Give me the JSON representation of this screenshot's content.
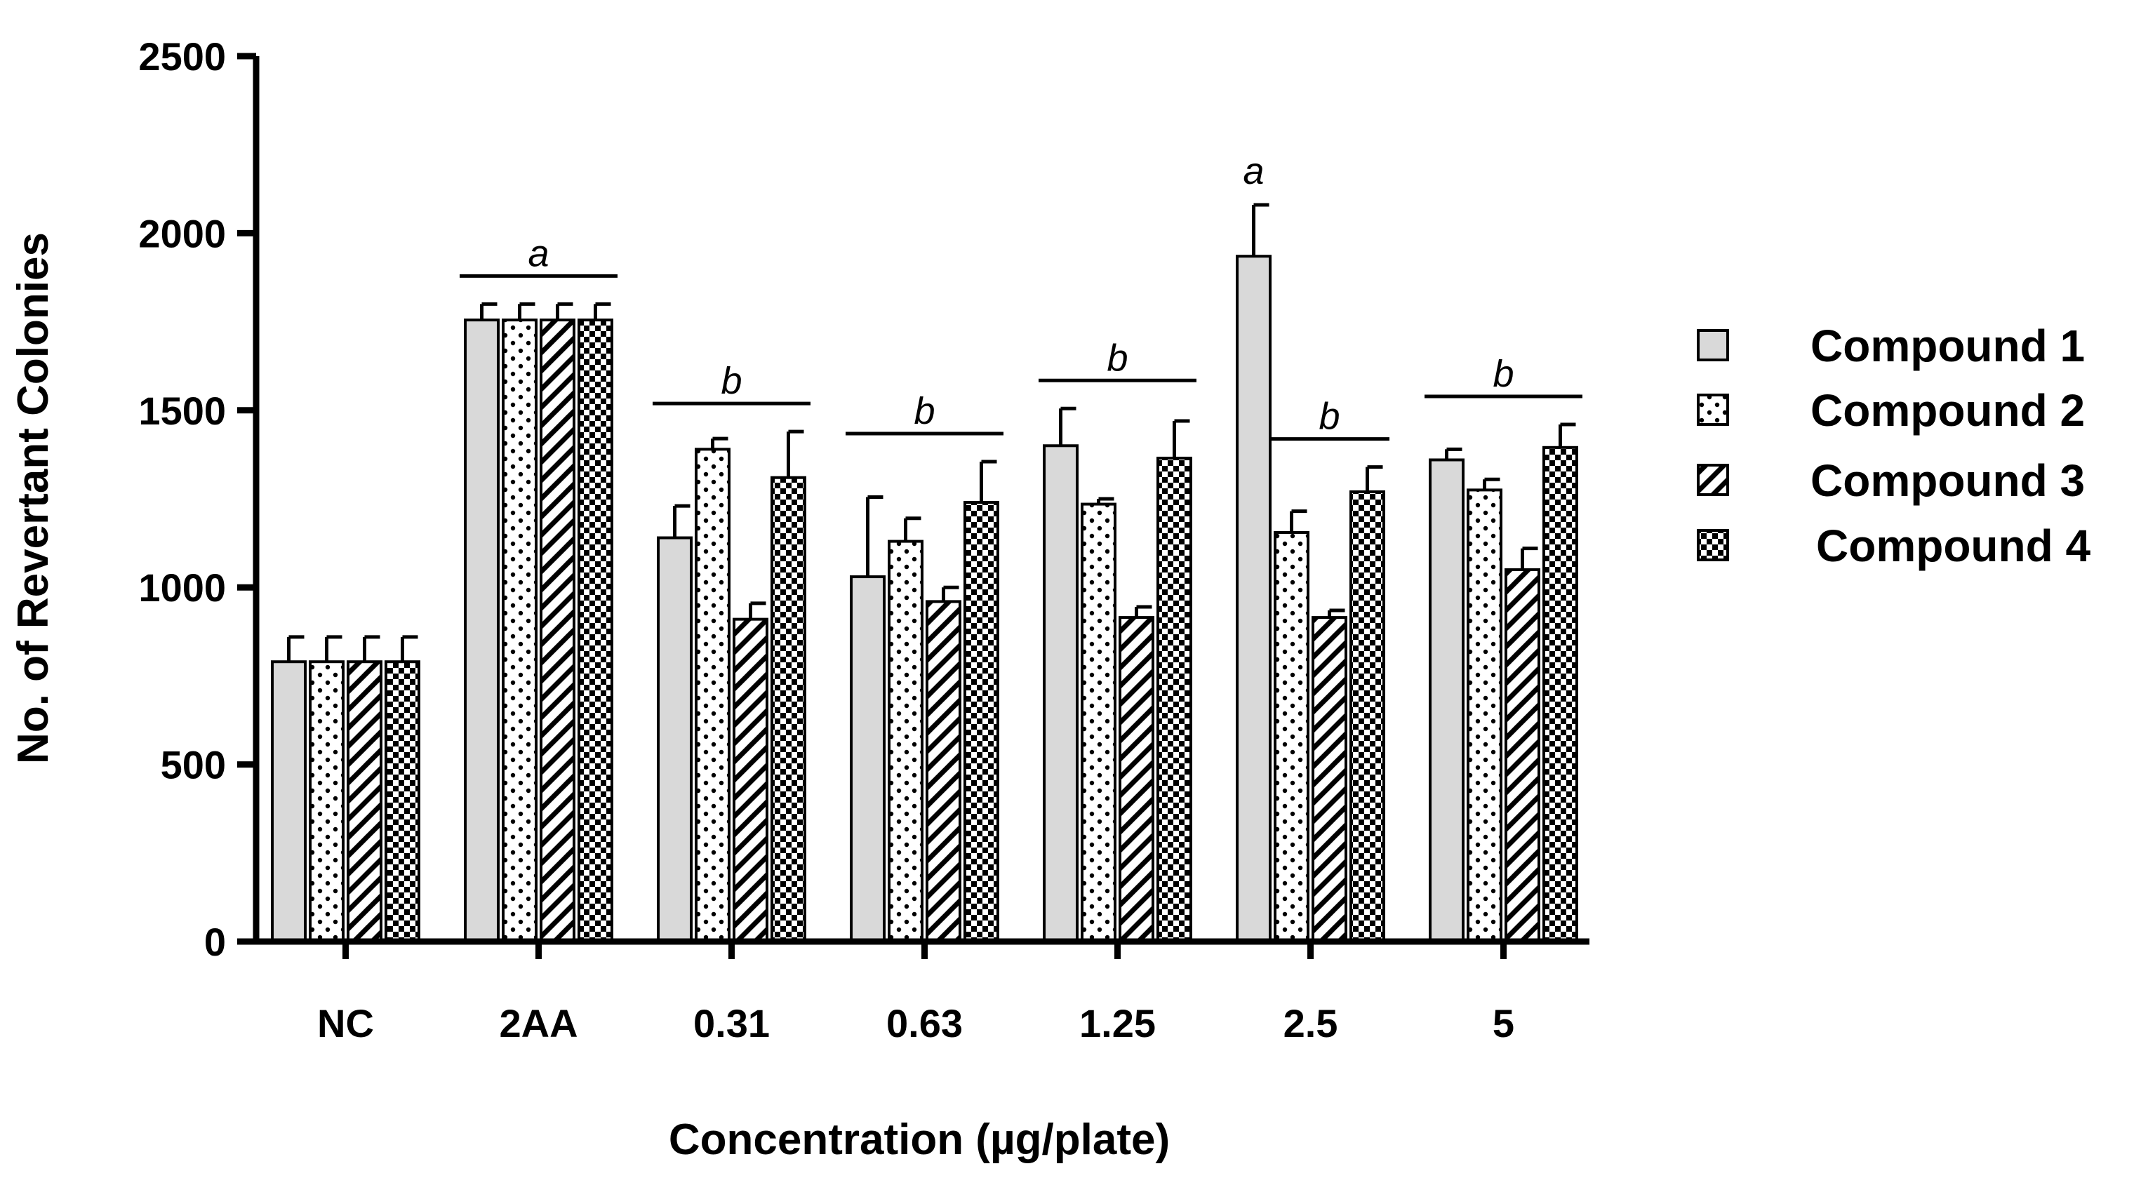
{
  "chart_data": {
    "type": "bar",
    "title": "",
    "xlabel": "Concentration (µg/plate)",
    "ylabel": "No. of Revertant Colonies",
    "ylim": [
      0,
      2500
    ],
    "yticks": [
      0,
      500,
      1000,
      1500,
      2000,
      2500
    ],
    "categories": [
      "NC",
      "2AA",
      "0.31",
      "0.63",
      "1.25",
      "2.5",
      "5"
    ],
    "series": [
      {
        "name": "Compound 1",
        "pattern": "gray",
        "values": [
          790,
          1755,
          1140,
          1030,
          1400,
          1935,
          1360
        ],
        "errors": [
          70,
          45,
          90,
          225,
          105,
          145,
          30
        ]
      },
      {
        "name": "Compound 2",
        "pattern": "dots",
        "values": [
          790,
          1755,
          1390,
          1130,
          1235,
          1155,
          1275
        ],
        "errors": [
          70,
          45,
          30,
          65,
          15,
          60,
          30
        ]
      },
      {
        "name": "Compound 3",
        "pattern": "diagonal",
        "values": [
          790,
          1755,
          910,
          960,
          915,
          915,
          1050
        ],
        "errors": [
          70,
          45,
          45,
          40,
          30,
          20,
          60
        ]
      },
      {
        "name": "Compound 4",
        "pattern": "checker",
        "values": [
          790,
          1755,
          1310,
          1240,
          1365,
          1270,
          1395
        ],
        "errors": [
          70,
          45,
          130,
          115,
          105,
          70,
          65
        ]
      }
    ],
    "annotations": [
      {
        "category": "2AA",
        "series": "all",
        "text": "a",
        "bracket": true
      },
      {
        "category": "0.31",
        "series": "all",
        "text": "b",
        "bracket": true
      },
      {
        "category": "0.63",
        "series": "all",
        "text": "b",
        "bracket": true
      },
      {
        "category": "1.25",
        "series": "all",
        "text": "b",
        "bracket": true
      },
      {
        "category": "2.5",
        "series": "Compound 1",
        "text": "a",
        "bracket": false
      },
      {
        "category": "2.5",
        "series": "Compounds 2-4",
        "text": "b",
        "bracket": true
      },
      {
        "category": "5",
        "series": "all",
        "text": "b",
        "bracket": true
      }
    ],
    "legend_position": "right"
  }
}
